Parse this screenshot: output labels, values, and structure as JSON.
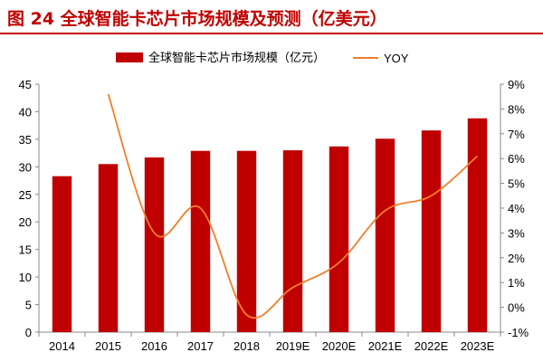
{
  "title": "图 24 全球智能卡芯片市场规模及预测（亿美元）",
  "chart_data": {
    "type": "bar+line",
    "title": "图 24 全球智能卡芯片市场规模及预测（亿美元）",
    "categories": [
      "2014",
      "2015",
      "2016",
      "2017",
      "2018",
      "2019E",
      "2020E",
      "2021E",
      "2022E",
      "2023E"
    ],
    "series": [
      {
        "name": "全球智能卡芯片市场规模（亿元）",
        "type": "bar",
        "axis": "left",
        "color": "#c00000",
        "values": [
          28.3,
          30.5,
          31.7,
          32.9,
          32.9,
          33.0,
          33.7,
          35.1,
          36.6,
          38.8
        ]
      },
      {
        "name": "YOY",
        "type": "line",
        "axis": "right",
        "color": "#f07f2a",
        "values": [
          null,
          8.6,
          3.0,
          4.0,
          -0.3,
          0.8,
          1.8,
          3.9,
          4.5,
          6.1
        ]
      }
    ],
    "left_axis": {
      "ylim": [
        0,
        45
      ],
      "ticks": [
        "0",
        "5",
        "10",
        "15",
        "20",
        "25",
        "30",
        "35",
        "40",
        "45"
      ]
    },
    "right_axis": {
      "ylim": [
        -1,
        9
      ],
      "ticks": [
        "-1%",
        "0%",
        "1%",
        "2%",
        "3%",
        "4%",
        "5%",
        "6%",
        "7%",
        "8%",
        "9%"
      ]
    },
    "legend": "top",
    "grid": false
  }
}
